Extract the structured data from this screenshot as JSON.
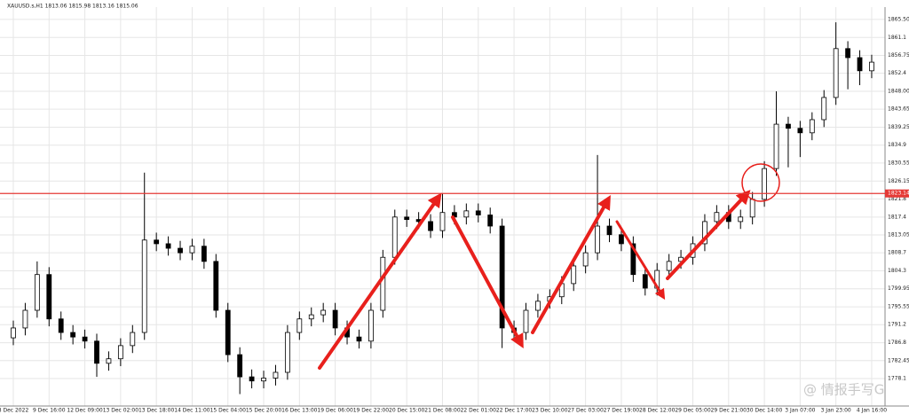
{
  "chart_data": {
    "type": "ohlc",
    "title": "XAUUSD.s,H1  1813.06 1815.98 1813.16 1815.06",
    "watermark": "@ 情报手写G",
    "categories": [
      "8 Dec 2022",
      null,
      null,
      "9 Dec 16:00",
      null,
      null,
      "12 Dec 09:00",
      null,
      null,
      "13 Dec 02:00",
      null,
      null,
      "13 Dec 18:00",
      null,
      null,
      "14 Dec 11:00",
      null,
      null,
      "15 Dec 04:00",
      null,
      null,
      "15 Dec 20:00",
      null,
      null,
      "16 Dec 13:00",
      null,
      null,
      "19 Dec 06:00",
      null,
      null,
      "19 Dec 22:00",
      null,
      null,
      "20 Dec 15:00",
      null,
      null,
      "21 Dec 08:00",
      null,
      null,
      "22 Dec 01:00",
      null,
      null,
      "22 Dec 17:00",
      null,
      null,
      "23 Dec 10:00",
      null,
      null,
      "27 Dec 03:00",
      null,
      null,
      "27 Dec 19:00",
      null,
      null,
      "28 Dec 12:00",
      null,
      null,
      "29 Dec 05:00",
      null,
      null,
      "29 Dec 21:00",
      null,
      null,
      "30 Dec 14:00",
      null,
      null,
      "3 Jan 07:00",
      null,
      null,
      "3 Jan 23:00",
      null,
      null,
      "4 Jan 16:00"
    ],
    "open": [
      1788.0,
      1790.4,
      1794.7,
      1803.4,
      1792.6,
      1789.3,
      1788.2,
      1787.2,
      1781.8,
      1782.9,
      1786.1,
      1789.3,
      1811.8,
      1810.9,
      1809.8,
      1808.7,
      1810.3,
      1806.6,
      1794.7,
      1783.9,
      1778.5,
      1777.5,
      1778.2,
      1779.6,
      1789.3,
      1792.6,
      1793.6,
      1794.7,
      1790.4,
      1788.2,
      1787.2,
      1794.7,
      1807.6,
      1817.4,
      1816.8,
      1816.3,
      1814.1,
      1818.5,
      1817.4,
      1818.9,
      1817.9,
      1815.2,
      1790.4,
      1789.3,
      1794.7,
      1796.9,
      1798.0,
      1801.2,
      1805.5,
      1808.7,
      1815.2,
      1813.1,
      1810.9,
      1803.4,
      1800.1,
      1804.4,
      1806.6,
      1807.6,
      1810.9,
      1816.3,
      1818.5,
      1816.3,
      1817.4,
      1821.7,
      1829.2,
      1840.0,
      1839.0,
      1837.9,
      1841.1,
      1846.5,
      1858.4,
      1856.2,
      1853.0
    ],
    "high": [
      1792.2,
      1796.5,
      1806.6,
      1805.2,
      1794.4,
      1791.1,
      1790.0,
      1789.0,
      1784.7,
      1787.9,
      1791.1,
      1828.2,
      1813.6,
      1812.7,
      1811.6,
      1812.1,
      1812.1,
      1808.4,
      1796.5,
      1785.7,
      1780.3,
      1780.0,
      1781.4,
      1791.1,
      1794.4,
      1795.4,
      1796.5,
      1796.5,
      1792.2,
      1790.0,
      1796.5,
      1809.4,
      1819.2,
      1819.2,
      1818.6,
      1818.1,
      1823.2,
      1820.3,
      1820.7,
      1820.7,
      1819.7,
      1817.0,
      1792.2,
      1796.5,
      1798.7,
      1799.8,
      1803.0,
      1807.3,
      1810.5,
      1832.5,
      1817.0,
      1814.9,
      1812.7,
      1805.2,
      1806.2,
      1808.4,
      1809.4,
      1812.7,
      1818.1,
      1820.3,
      1820.3,
      1819.2,
      1823.5,
      1831.0,
      1848.0,
      1841.8,
      1840.8,
      1842.9,
      1848.3,
      1864.8,
      1860.2,
      1858.0,
      1856.9
    ],
    "low": [
      1786.2,
      1788.6,
      1792.9,
      1790.8,
      1787.5,
      1786.4,
      1785.4,
      1778.5,
      1780.0,
      1781.1,
      1784.3,
      1787.5,
      1809.1,
      1808.0,
      1806.9,
      1806.9,
      1804.8,
      1792.9,
      1782.1,
      1774.3,
      1775.7,
      1775.7,
      1776.4,
      1777.8,
      1787.5,
      1790.8,
      1791.8,
      1788.6,
      1786.4,
      1785.4,
      1785.4,
      1792.9,
      1805.8,
      1815.0,
      1814.5,
      1812.3,
      1812.3,
      1815.6,
      1815.6,
      1816.1,
      1813.4,
      1785.5,
      1787.5,
      1787.5,
      1792.9,
      1795.1,
      1796.2,
      1799.4,
      1803.7,
      1806.9,
      1811.3,
      1809.1,
      1801.6,
      1798.3,
      1798.3,
      1802.6,
      1804.8,
      1805.8,
      1809.1,
      1814.5,
      1814.5,
      1814.5,
      1815.6,
      1819.9,
      1827.4,
      1829.5,
      1832.0,
      1836.1,
      1839.3,
      1844.7,
      1848.5,
      1849.5,
      1851.2
    ],
    "close": [
      1790.4,
      1794.7,
      1803.4,
      1792.6,
      1789.3,
      1788.2,
      1787.2,
      1781.8,
      1782.9,
      1786.1,
      1789.3,
      1811.8,
      1810.9,
      1809.8,
      1808.7,
      1810.3,
      1806.6,
      1794.7,
      1783.9,
      1778.5,
      1777.5,
      1778.2,
      1779.6,
      1789.3,
      1792.6,
      1793.6,
      1794.7,
      1790.4,
      1788.2,
      1787.2,
      1794.7,
      1807.6,
      1817.4,
      1816.8,
      1816.3,
      1814.1,
      1818.5,
      1817.4,
      1818.9,
      1817.9,
      1815.2,
      1790.4,
      1789.3,
      1794.7,
      1796.9,
      1798.0,
      1801.2,
      1805.5,
      1808.7,
      1815.2,
      1813.1,
      1810.9,
      1803.4,
      1800.1,
      1804.4,
      1806.6,
      1807.6,
      1810.9,
      1816.3,
      1818.5,
      1816.3,
      1817.4,
      1821.7,
      1829.2,
      1840.0,
      1839.0,
      1837.9,
      1841.1,
      1846.5,
      1858.4,
      1856.2,
      1853.0,
      1855.1
    ],
    "hline": {
      "value": 1823.14,
      "color": "#e53935"
    },
    "ylim": [
      1771.4,
      1868.5
    ],
    "yticks": [
      {
        "value": 1865.5,
        "label": "1865.50"
      },
      1861.1,
      1856.75,
      1852.4,
      {
        "value": 1848.0,
        "label": "1848.00"
      },
      1843.65,
      1839.25,
      1834.9,
      1830.55,
      1826.15,
      1821.8,
      1817.4,
      1813.05,
      1808.7,
      1804.3,
      1799.95,
      1795.55,
      1791.2,
      1786.8,
      1782.45,
      1778.1
    ],
    "grid": true,
    "color": "#000000"
  }
}
